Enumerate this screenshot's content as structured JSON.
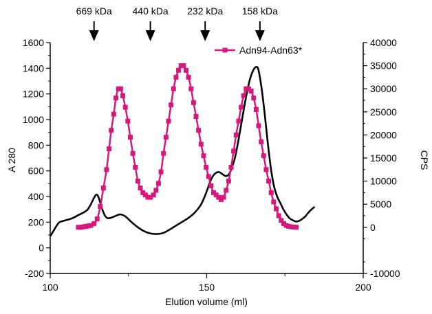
{
  "chart_data": {
    "type": "line",
    "xlabel": "Elution volume (ml)",
    "ylabel_left": "A 280",
    "ylabel_right": "CPS",
    "xlim": [
      100,
      200
    ],
    "ylim_left": [
      -200,
      1600
    ],
    "ylim_right": [
      -10000,
      40000
    ],
    "x_ticks": [
      100,
      150,
      200
    ],
    "y_ticks_left": [
      -200,
      0,
      200,
      400,
      600,
      800,
      1000,
      1200,
      1400,
      1600
    ],
    "y_ticks_right": [
      -10000,
      0,
      5000,
      10000,
      15000,
      20000,
      25000,
      30000,
      35000,
      40000
    ],
    "markers": [
      {
        "label": "669 kDa",
        "x": 114
      },
      {
        "label": "440 kDa",
        "x": 132
      },
      {
        "label": "232 kDa",
        "x": 149.5
      },
      {
        "label": "158 kDa",
        "x": 167
      }
    ],
    "legend": {
      "label": "Adn94-Adn63*",
      "placement": "top-right"
    },
    "colors": {
      "cps_series": "#d6187c",
      "a280_series": "#000000"
    },
    "series": [
      {
        "name": "A 280",
        "axis": "left",
        "style": "line",
        "points": [
          [
            100,
            90
          ],
          [
            101,
            130
          ],
          [
            102,
            170
          ],
          [
            103,
            200
          ],
          [
            105,
            215
          ],
          [
            107,
            230
          ],
          [
            109,
            255
          ],
          [
            111,
            280
          ],
          [
            112,
            300
          ],
          [
            113,
            340
          ],
          [
            114,
            390
          ],
          [
            114.8,
            415
          ],
          [
            115.5,
            390
          ],
          [
            116.5,
            310
          ],
          [
            117.5,
            250
          ],
          [
            118.5,
            230
          ],
          [
            120,
            240
          ],
          [
            121.5,
            255
          ],
          [
            122.5,
            260
          ],
          [
            124,
            245
          ],
          [
            126,
            200
          ],
          [
            128,
            160
          ],
          [
            130,
            130
          ],
          [
            132,
            112
          ],
          [
            134,
            108
          ],
          [
            136,
            115
          ],
          [
            138,
            140
          ],
          [
            140,
            170
          ],
          [
            142,
            200
          ],
          [
            144,
            230
          ],
          [
            146,
            270
          ],
          [
            148,
            330
          ],
          [
            149,
            380
          ],
          [
            150,
            440
          ],
          [
            151,
            510
          ],
          [
            152,
            560
          ],
          [
            153,
            585
          ],
          [
            154,
            590
          ],
          [
            155,
            575
          ],
          [
            156,
            560
          ],
          [
            157,
            570
          ],
          [
            158,
            620
          ],
          [
            159,
            700
          ],
          [
            160,
            820
          ],
          [
            161,
            960
          ],
          [
            162,
            1100
          ],
          [
            163,
            1230
          ],
          [
            164,
            1330
          ],
          [
            165,
            1390
          ],
          [
            165.8,
            1410
          ],
          [
            166.5,
            1390
          ],
          [
            167.5,
            1250
          ],
          [
            168.5,
            1050
          ],
          [
            169.5,
            820
          ],
          [
            170.5,
            620
          ],
          [
            171.5,
            480
          ],
          [
            172.5,
            400
          ],
          [
            173.5,
            350
          ],
          [
            174.5,
            300
          ],
          [
            175.5,
            260
          ],
          [
            176.5,
            230
          ],
          [
            177.5,
            215
          ],
          [
            178.5,
            205
          ],
          [
            179.5,
            210
          ],
          [
            180.5,
            225
          ],
          [
            181.5,
            245
          ],
          [
            182.5,
            275
          ],
          [
            183.5,
            300
          ],
          [
            184.5,
            320
          ]
        ]
      },
      {
        "name": "Adn94-Adn63*",
        "axis": "right",
        "style": "line-marker",
        "points": [
          [
            109,
            0
          ],
          [
            109.8,
            0
          ],
          [
            110.6,
            100
          ],
          [
            111.4,
            200
          ],
          [
            112.2,
            300
          ],
          [
            113,
            400
          ],
          [
            114,
            800
          ],
          [
            115,
            1800
          ],
          [
            116,
            4500
          ],
          [
            117,
            8500
          ],
          [
            118,
            12500
          ],
          [
            118.8,
            17000
          ],
          [
            119.5,
            21000
          ],
          [
            120.3,
            24500
          ],
          [
            121,
            28000
          ],
          [
            121.8,
            30000
          ],
          [
            122.5,
            30000
          ],
          [
            123.2,
            28500
          ],
          [
            124,
            26000
          ],
          [
            124.8,
            23000
          ],
          [
            125.6,
            19500
          ],
          [
            126.4,
            16000
          ],
          [
            127.2,
            13000
          ],
          [
            128,
            10000
          ],
          [
            128.8,
            8500
          ],
          [
            129.6,
            7500
          ],
          [
            130.4,
            7000
          ],
          [
            131.2,
            6500
          ],
          [
            132,
            6500
          ],
          [
            133,
            7000
          ],
          [
            133.8,
            8000
          ],
          [
            134.6,
            9500
          ],
          [
            135.4,
            12000
          ],
          [
            136.2,
            16000
          ],
          [
            137,
            19500
          ],
          [
            137.8,
            23000
          ],
          [
            138.6,
            26500
          ],
          [
            139.4,
            30000
          ],
          [
            140.2,
            32500
          ],
          [
            141,
            34000
          ],
          [
            141.8,
            35000
          ],
          [
            142.6,
            35000
          ],
          [
            143.4,
            34000
          ],
          [
            144.2,
            32500
          ],
          [
            145,
            30000
          ],
          [
            145.8,
            27000
          ],
          [
            146.6,
            24000
          ],
          [
            147.4,
            21000
          ],
          [
            148.2,
            18000
          ],
          [
            149,
            15500
          ],
          [
            149.8,
            13000
          ],
          [
            150.6,
            11000
          ],
          [
            151.4,
            9000
          ],
          [
            152.2,
            7500
          ],
          [
            153,
            7000
          ],
          [
            153.8,
            6500
          ],
          [
            154.6,
            6000
          ],
          [
            155.4,
            6500
          ],
          [
            156.2,
            8000
          ],
          [
            157,
            10000
          ],
          [
            157.8,
            13000
          ],
          [
            158.6,
            16500
          ],
          [
            159.4,
            20000
          ],
          [
            160.2,
            23000
          ],
          [
            161,
            26000
          ],
          [
            161.8,
            28500
          ],
          [
            162.6,
            30000
          ],
          [
            163.4,
            30000
          ],
          [
            164.2,
            29500
          ],
          [
            165,
            28000
          ],
          [
            165.8,
            25500
          ],
          [
            166.6,
            22000
          ],
          [
            167.4,
            18500
          ],
          [
            168.2,
            15500
          ],
          [
            169,
            12500
          ],
          [
            169.8,
            10000
          ],
          [
            170.6,
            7500
          ],
          [
            171.4,
            5500
          ],
          [
            172.2,
            4000
          ],
          [
            173,
            2500
          ],
          [
            173.8,
            1500
          ],
          [
            174.6,
            800
          ],
          [
            175.4,
            400
          ],
          [
            176.2,
            200
          ],
          [
            177,
            100
          ],
          [
            177.8,
            50
          ],
          [
            178.6,
            0
          ]
        ]
      }
    ]
  }
}
